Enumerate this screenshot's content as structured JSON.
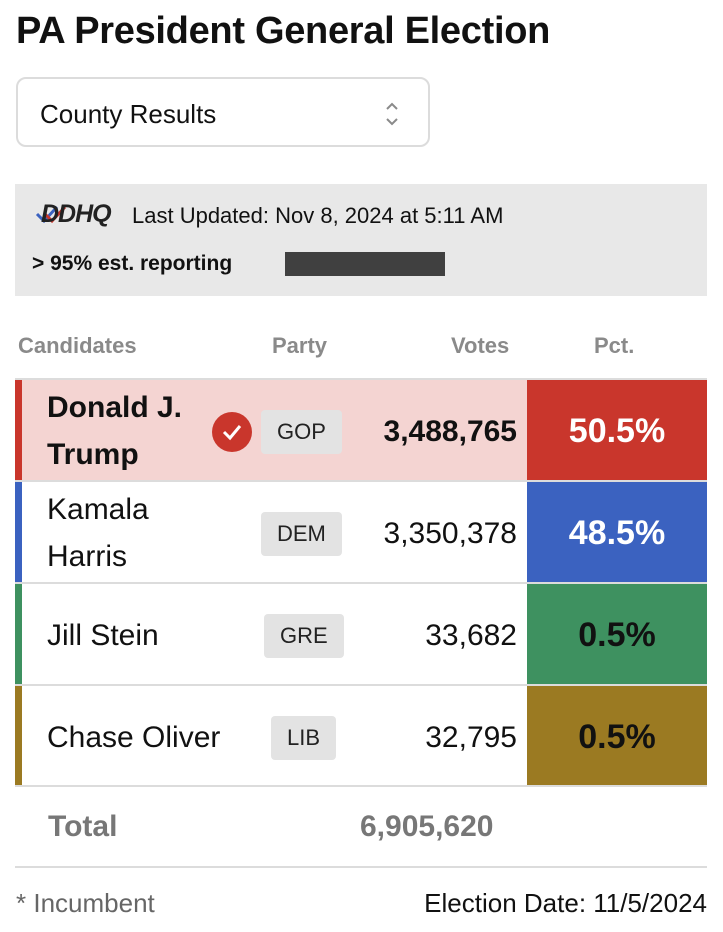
{
  "title": "PA President General Election",
  "select": {
    "value": "County Results"
  },
  "info": {
    "logo_text": "DDHQ",
    "last_updated": "Last Updated: Nov 8, 2024 at 5:11 AM",
    "reporting": "> 95% est. reporting"
  },
  "headers": {
    "candidates": "Candidates",
    "party": "Party",
    "votes": "Votes",
    "pct": "Pct."
  },
  "rows": [
    {
      "name_line1": "Donald J.",
      "name_line2": "Trump",
      "party": "GOP",
      "votes": "3,488,765",
      "pct": "50.5%",
      "winner": true,
      "color": "#c9362c",
      "row_bg": "#f4d4d2",
      "pct_text_color": "#ffffff"
    },
    {
      "name_line1": "Kamala",
      "name_line2": "Harris",
      "party": "DEM",
      "votes": "3,350,378",
      "pct": "48.5%",
      "winner": false,
      "color": "#3b62c0",
      "row_bg": "#ffffff",
      "pct_text_color": "#ffffff"
    },
    {
      "name_line1": "Jill Stein",
      "name_line2": "",
      "party": "GRE",
      "votes": "33,682",
      "pct": "0.5%",
      "winner": false,
      "color": "#3e9160",
      "row_bg": "#ffffff",
      "pct_text_color": "#111111"
    },
    {
      "name_line1": "Chase Oliver",
      "name_line2": "",
      "party": "LIB",
      "votes": "32,795",
      "pct": "0.5%",
      "winner": false,
      "color": "#9b7a22",
      "row_bg": "#ffffff",
      "pct_text_color": "#111111"
    }
  ],
  "total": {
    "label": "Total",
    "votes": "6,905,620"
  },
  "footer": {
    "incumbent_note": "* Incumbent",
    "election_date": "Election Date: 11/5/2024"
  },
  "icons": {
    "select": "chevron-up-down-icon",
    "winner": "check-circle-icon",
    "logo": "ddhq-logo"
  }
}
